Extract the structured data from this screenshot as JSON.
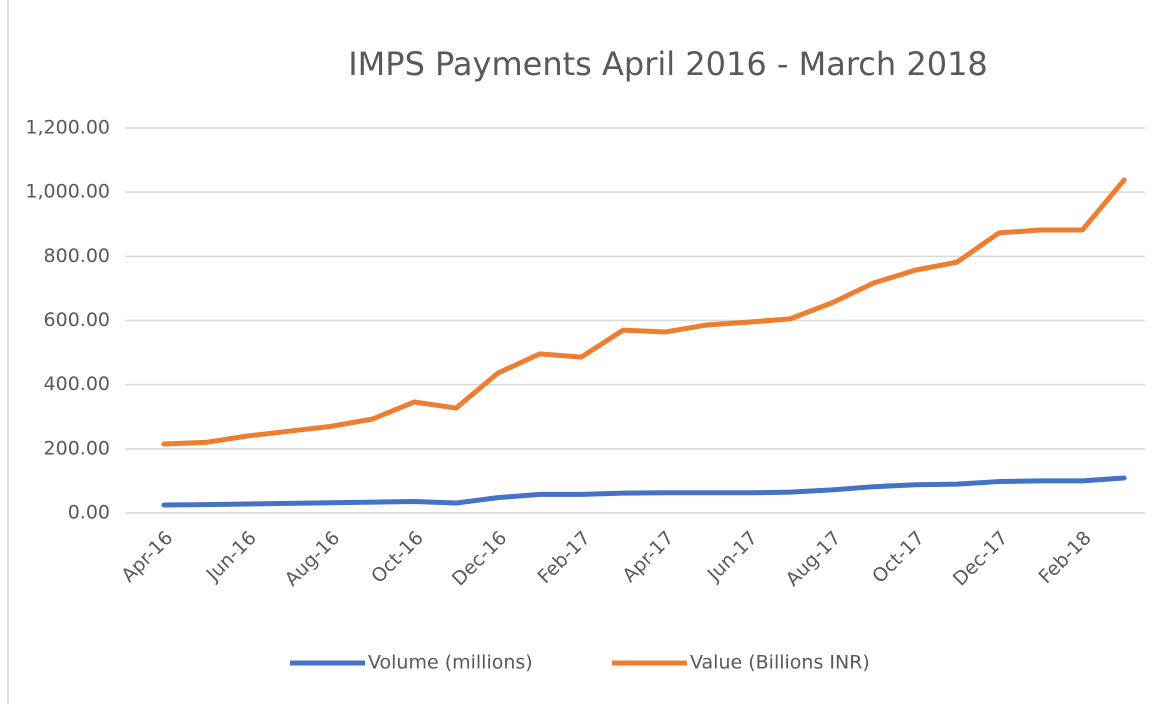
{
  "chart_data": {
    "type": "line",
    "title": "IMPS Payments April 2016 - March 2018",
    "categories": [
      "Apr-16",
      null,
      "Jun-16",
      null,
      "Aug-16",
      null,
      "Oct-16",
      null,
      "Dec-16",
      null,
      "Feb-17",
      null,
      "Apr-17",
      null,
      "Jun-17",
      null,
      "Aug-17",
      null,
      "Oct-17",
      null,
      "Dec-17",
      null,
      "Feb-18",
      null
    ],
    "series": [
      {
        "name": "Volume (millions)",
        "color": "#4472c4",
        "values": [
          25,
          26,
          28,
          30,
          32,
          34,
          36,
          31,
          48,
          58,
          58,
          62,
          63,
          63,
          63,
          65,
          72,
          82,
          88,
          90,
          98,
          100,
          100,
          109
        ]
      },
      {
        "name": "Value (Billions INR)",
        "color": "#ed7d31",
        "values": [
          215,
          220,
          240,
          255,
          270,
          293,
          346,
          327,
          436,
          496,
          486,
          570,
          564,
          586,
          595,
          605,
          655,
          717,
          757,
          782,
          873,
          882,
          882,
          1038
        ]
      }
    ],
    "ylim": [
      0,
      1200
    ],
    "yticks": [
      {
        "value": 0,
        "label": "0.00"
      },
      {
        "value": 200,
        "label": "200.00"
      },
      {
        "value": 400,
        "label": "400.00"
      },
      {
        "value": 600,
        "label": "600.00"
      },
      {
        "value": 800,
        "label": "800.00"
      },
      {
        "value": 1000,
        "label": "1,000.00"
      },
      {
        "value": 1200,
        "label": "1,200.00"
      }
    ],
    "grid": true,
    "legend": "bottom"
  }
}
